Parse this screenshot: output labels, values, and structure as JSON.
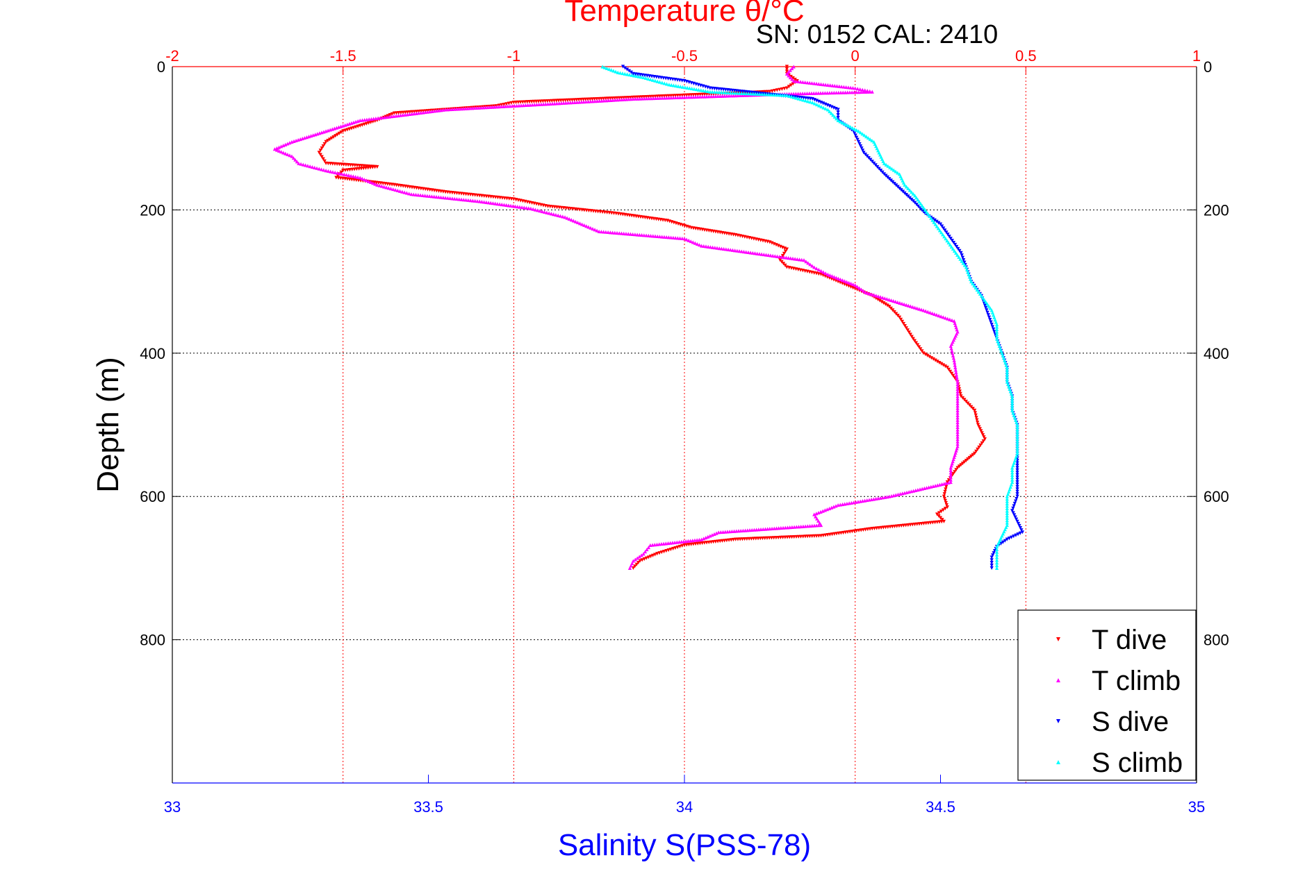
{
  "chart_data": {
    "type": "scatter",
    "title": "Temperature θ/°C",
    "subtitle": "SN: 0152  CAL: 2410",
    "ylabel": "Depth (m)",
    "xlabel_bottom": "Salinity S(PSS-78)",
    "xlabel_top": "Temperature θ/°C",
    "colors": {
      "temperature_axis": "#ff0000",
      "salinity_axis": "#0000ff"
    },
    "axes": {
      "depth": {
        "range": [
          0,
          1000
        ],
        "reversed": true,
        "ticks": [
          0,
          200,
          400,
          600,
          800
        ],
        "tick_labels": [
          "0",
          "200",
          "400",
          "600",
          "800"
        ]
      },
      "salinity": {
        "range": [
          33,
          35
        ],
        "ticks": [
          33,
          33.5,
          34,
          34.5,
          35
        ],
        "tick_labels": [
          "33",
          "33.5",
          "34",
          "34.5",
          "35"
        ]
      },
      "temperature": {
        "range": [
          -2,
          1
        ],
        "ticks": [
          -2,
          -1.5,
          -1,
          -0.5,
          0,
          0.5,
          1
        ],
        "tick_labels": [
          "-2",
          "-1.5",
          "-1",
          "-0.5",
          "0",
          "0.5",
          "1"
        ]
      }
    },
    "grid": true,
    "legend": {
      "position": "bottom-right"
    },
    "series": [
      {
        "name": "T dive",
        "axis": "temperature",
        "color": "#ff0000",
        "marker": "triangle-down",
        "points": [
          [
            -0.2,
            0
          ],
          [
            -0.2,
            10
          ],
          [
            -0.17,
            20
          ],
          [
            -0.2,
            30
          ],
          [
            -0.25,
            35
          ],
          [
            -0.5,
            40
          ],
          [
            -1.0,
            50
          ],
          [
            -1.05,
            55
          ],
          [
            -1.35,
            65
          ],
          [
            -1.4,
            75
          ],
          [
            -1.5,
            90
          ],
          [
            -1.55,
            105
          ],
          [
            -1.57,
            120
          ],
          [
            -1.55,
            135
          ],
          [
            -1.4,
            140
          ],
          [
            -1.5,
            145
          ],
          [
            -1.52,
            155
          ],
          [
            -1.35,
            165
          ],
          [
            -1.2,
            175
          ],
          [
            -1.0,
            185
          ],
          [
            -0.9,
            195
          ],
          [
            -0.7,
            205
          ],
          [
            -0.55,
            215
          ],
          [
            -0.48,
            225
          ],
          [
            -0.35,
            235
          ],
          [
            -0.25,
            245
          ],
          [
            -0.2,
            255
          ],
          [
            -0.22,
            270
          ],
          [
            -0.2,
            280
          ],
          [
            -0.1,
            290
          ],
          [
            -0.05,
            300
          ],
          [
            0.0,
            310
          ],
          [
            0.05,
            320
          ],
          [
            0.1,
            335
          ],
          [
            0.13,
            350
          ],
          [
            0.15,
            365
          ],
          [
            0.17,
            380
          ],
          [
            0.2,
            400
          ],
          [
            0.27,
            420
          ],
          [
            0.3,
            440
          ],
          [
            0.31,
            460
          ],
          [
            0.35,
            480
          ],
          [
            0.36,
            500
          ],
          [
            0.38,
            520
          ],
          [
            0.35,
            540
          ],
          [
            0.3,
            560
          ],
          [
            0.27,
            580
          ],
          [
            0.26,
            600
          ],
          [
            0.27,
            615
          ],
          [
            0.24,
            625
          ],
          [
            0.26,
            635
          ],
          [
            0.05,
            645
          ],
          [
            -0.1,
            655
          ],
          [
            -0.35,
            660
          ],
          [
            -0.5,
            668
          ],
          [
            -0.58,
            680
          ],
          [
            -0.63,
            690
          ],
          [
            -0.65,
            700
          ]
        ]
      },
      {
        "name": "T climb",
        "axis": "temperature",
        "color": "#ff00ff",
        "marker": "triangle-up",
        "points": [
          [
            -0.18,
            0
          ],
          [
            -0.2,
            10
          ],
          [
            -0.18,
            20
          ],
          [
            0.0,
            30
          ],
          [
            0.05,
            35
          ],
          [
            -0.2,
            38
          ],
          [
            -0.65,
            45
          ],
          [
            -0.9,
            52
          ],
          [
            -1.2,
            60
          ],
          [
            -1.45,
            75
          ],
          [
            -1.55,
            90
          ],
          [
            -1.65,
            105
          ],
          [
            -1.7,
            115
          ],
          [
            -1.65,
            125
          ],
          [
            -1.63,
            135
          ],
          [
            -1.55,
            145
          ],
          [
            -1.45,
            155
          ],
          [
            -1.4,
            165
          ],
          [
            -1.3,
            178
          ],
          [
            -1.1,
            188
          ],
          [
            -0.95,
            198
          ],
          [
            -0.85,
            210
          ],
          [
            -0.8,
            220
          ],
          [
            -0.75,
            230
          ],
          [
            -0.5,
            240
          ],
          [
            -0.45,
            250
          ],
          [
            -0.3,
            260
          ],
          [
            -0.15,
            270
          ],
          [
            -0.12,
            280
          ],
          [
            -0.08,
            290
          ],
          [
            0.0,
            305
          ],
          [
            0.03,
            315
          ],
          [
            0.2,
            340
          ],
          [
            0.29,
            355
          ],
          [
            0.3,
            370
          ],
          [
            0.28,
            390
          ],
          [
            0.29,
            410
          ],
          [
            0.3,
            440
          ],
          [
            0.3,
            470
          ],
          [
            0.3,
            500
          ],
          [
            0.3,
            530
          ],
          [
            0.28,
            560
          ],
          [
            0.28,
            580
          ],
          [
            0.1,
            600
          ],
          [
            -0.05,
            612
          ],
          [
            -0.12,
            625
          ],
          [
            -0.1,
            640
          ],
          [
            -0.4,
            650
          ],
          [
            -0.45,
            660
          ],
          [
            -0.6,
            668
          ],
          [
            -0.62,
            680
          ],
          [
            -0.65,
            690
          ],
          [
            -0.66,
            700
          ]
        ]
      },
      {
        "name": "S dive",
        "axis": "salinity",
        "color": "#0000ff",
        "marker": "triangle-down",
        "points": [
          [
            33.88,
            0
          ],
          [
            33.9,
            10
          ],
          [
            33.95,
            15
          ],
          [
            34.0,
            20
          ],
          [
            34.05,
            30
          ],
          [
            34.25,
            45
          ],
          [
            34.3,
            60
          ],
          [
            34.3,
            75
          ],
          [
            34.33,
            90
          ],
          [
            34.34,
            105
          ],
          [
            34.35,
            120
          ],
          [
            34.37,
            135
          ],
          [
            34.39,
            150
          ],
          [
            34.42,
            170
          ],
          [
            34.45,
            190
          ],
          [
            34.47,
            205
          ],
          [
            34.5,
            220
          ],
          [
            34.52,
            240
          ],
          [
            34.54,
            260
          ],
          [
            34.55,
            280
          ],
          [
            34.56,
            300
          ],
          [
            34.58,
            320
          ],
          [
            34.59,
            340
          ],
          [
            34.6,
            360
          ],
          [
            34.61,
            380
          ],
          [
            34.62,
            400
          ],
          [
            34.63,
            420
          ],
          [
            34.63,
            440
          ],
          [
            34.64,
            460
          ],
          [
            34.64,
            480
          ],
          [
            34.65,
            500
          ],
          [
            34.65,
            520
          ],
          [
            34.65,
            540
          ],
          [
            34.65,
            560
          ],
          [
            34.65,
            580
          ],
          [
            34.65,
            600
          ],
          [
            34.64,
            620
          ],
          [
            34.65,
            635
          ],
          [
            34.66,
            650
          ],
          [
            34.63,
            660
          ],
          [
            34.61,
            670
          ],
          [
            34.6,
            685
          ],
          [
            34.6,
            700
          ]
        ]
      },
      {
        "name": "S climb",
        "axis": "salinity",
        "color": "#00ffff",
        "marker": "triangle-up",
        "points": [
          [
            33.84,
            0
          ],
          [
            33.87,
            8
          ],
          [
            33.92,
            15
          ],
          [
            33.97,
            25
          ],
          [
            34.05,
            35
          ],
          [
            34.2,
            40
          ],
          [
            34.25,
            50
          ],
          [
            34.28,
            60
          ],
          [
            34.3,
            75
          ],
          [
            34.34,
            90
          ],
          [
            34.37,
            105
          ],
          [
            34.38,
            120
          ],
          [
            34.39,
            135
          ],
          [
            34.42,
            150
          ],
          [
            34.43,
            165
          ],
          [
            34.45,
            180
          ],
          [
            34.47,
            200
          ],
          [
            34.49,
            220
          ],
          [
            34.51,
            240
          ],
          [
            34.53,
            260
          ],
          [
            34.55,
            280
          ],
          [
            34.56,
            300
          ],
          [
            34.58,
            320
          ],
          [
            34.6,
            340
          ],
          [
            34.61,
            360
          ],
          [
            34.61,
            380
          ],
          [
            34.62,
            400
          ],
          [
            34.63,
            420
          ],
          [
            34.63,
            440
          ],
          [
            34.64,
            460
          ],
          [
            34.64,
            480
          ],
          [
            34.65,
            500
          ],
          [
            34.65,
            520
          ],
          [
            34.65,
            540
          ],
          [
            34.64,
            560
          ],
          [
            34.64,
            580
          ],
          [
            34.63,
            600
          ],
          [
            34.63,
            620
          ],
          [
            34.63,
            640
          ],
          [
            34.62,
            655
          ],
          [
            34.61,
            670
          ],
          [
            34.61,
            685
          ],
          [
            34.61,
            700
          ]
        ]
      }
    ]
  }
}
